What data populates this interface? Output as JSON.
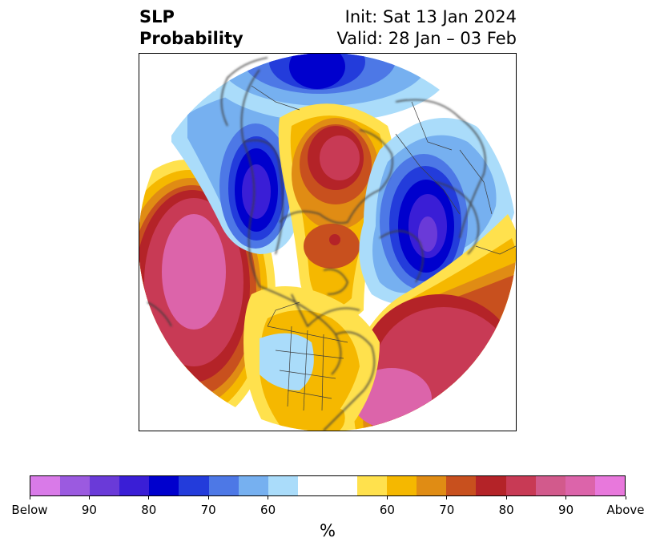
{
  "header": {
    "title_line1": "SLP",
    "title_line2": "Probability",
    "init_text": "Init: Sat 13 Jan 2024",
    "valid_text": "Valid: 28 Jan – 03 Feb"
  },
  "legend": {
    "units": "%",
    "colors": [
      "#d97ae8",
      "#9b5ae0",
      "#6a3ad8",
      "#3a1ed6",
      "#0000cd",
      "#233cdb",
      "#4d78e6",
      "#76b0f0",
      "#aadcfa",
      "#ffffff",
      "#ffe14d",
      "#f5b800",
      "#e08c14",
      "#c8501e",
      "#b42328",
      "#c83a55",
      "#d25a8c",
      "#dc64aa",
      "#e878dc"
    ],
    "tick_labels": [
      "Below",
      "90",
      "80",
      "70",
      "60",
      "60",
      "70",
      "80",
      "90",
      "Above"
    ]
  },
  "map": {
    "projection": "north-polar-stereographic",
    "field": "sea level pressure probability",
    "palette": {
      "above_60": "#ffe14d",
      "above_70": "#f5b800",
      "above_75": "#e08c14",
      "above_80": "#c8501e",
      "above_85": "#b42328",
      "above_90": "#c83a55",
      "above_95": "#dc64aa",
      "below_60": "#aadcfa",
      "below_70": "#76b0f0",
      "below_75": "#4d78e6",
      "below_80": "#233cdb",
      "below_85": "#0000cd",
      "below_90": "#3a1ed6",
      "below_95": "#6a3ad8",
      "coast": "#3c3c3c"
    }
  }
}
